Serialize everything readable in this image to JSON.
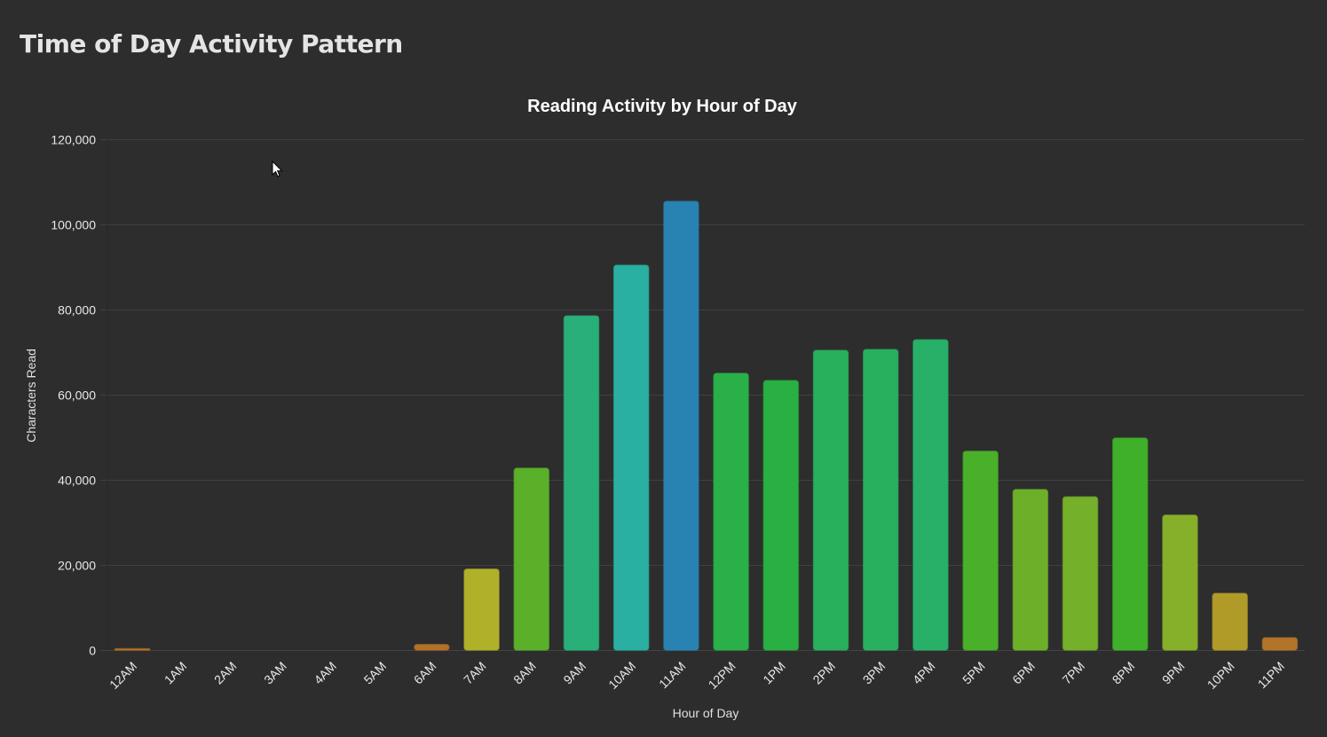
{
  "page": {
    "title": "Time of Day Activity Pattern"
  },
  "colors": {
    "background": "#2d2d2d",
    "grid": "#404040",
    "text": "#e8e8e8"
  },
  "chart_data": {
    "type": "bar",
    "title": "Reading Activity by Hour of Day",
    "xlabel": "Hour of Day",
    "ylabel": "Characters Read",
    "ylim": [
      0,
      120000
    ],
    "yticks": [
      0,
      20000,
      40000,
      60000,
      80000,
      100000,
      120000
    ],
    "ytick_labels": [
      "0",
      "20,000",
      "40,000",
      "60,000",
      "80,000",
      "100,000",
      "120,000"
    ],
    "grid": true,
    "categories": [
      "12AM",
      "1AM",
      "2AM",
      "3AM",
      "4AM",
      "5AM",
      "6AM",
      "7AM",
      "8AM",
      "9AM",
      "10AM",
      "11AM",
      "12PM",
      "1PM",
      "2PM",
      "3PM",
      "4PM",
      "5PM",
      "6PM",
      "7PM",
      "8PM",
      "9PM",
      "10PM",
      "11PM"
    ],
    "values": [
      300,
      0,
      0,
      0,
      0,
      0,
      1300,
      19000,
      42700,
      78500,
      90400,
      105400,
      65000,
      63300,
      70400,
      70600,
      72900,
      46700,
      37700,
      36000,
      49800,
      31700,
      13300,
      2900
    ],
    "bar_colors": [
      "#b8732a",
      "#b8732a",
      "#b8732a",
      "#b8732a",
      "#b8732a",
      "#b8732a",
      "#b8732a",
      "#b5b52a",
      "#5db52a",
      "#2ab57d",
      "#2ab5a8",
      "#2a87b8",
      "#2ab54a",
      "#2ab544",
      "#2ab560",
      "#2ab562",
      "#2ab56b",
      "#4bb52a",
      "#6fb52a",
      "#78b52a",
      "#40b52a",
      "#8ab52a",
      "#b5a02a",
      "#b8782a"
    ]
  }
}
